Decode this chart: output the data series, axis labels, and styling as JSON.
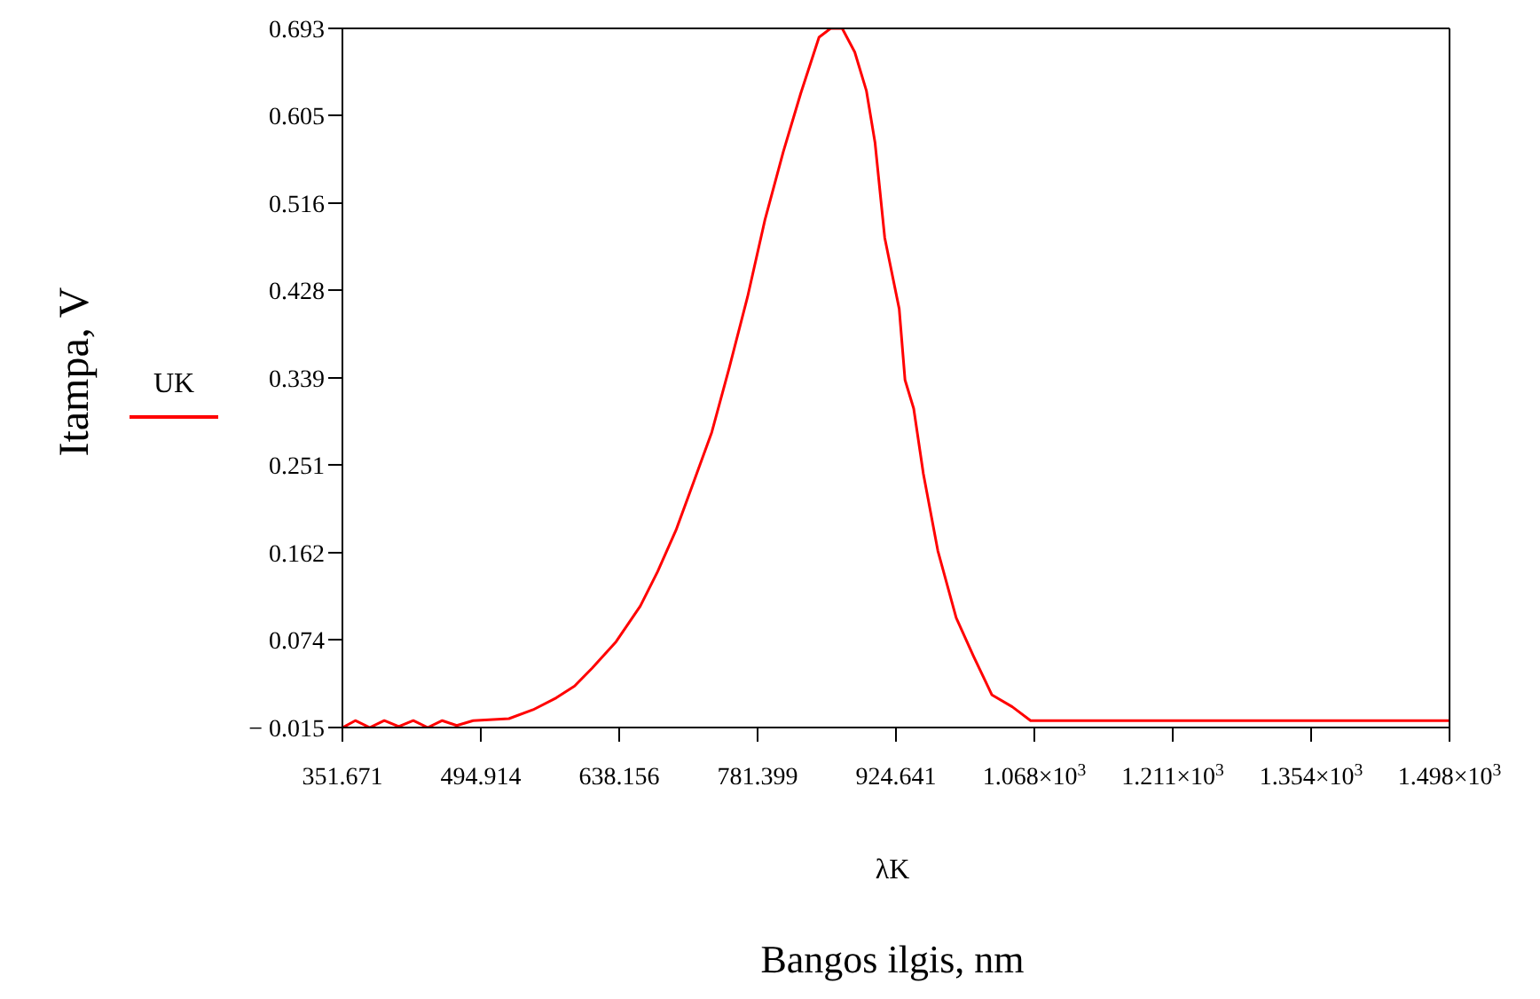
{
  "chart_data": {
    "type": "line",
    "xlabel": "Bangos ilgis, nm",
    "ylabel": "Itampa, V",
    "annotations": [
      "λK"
    ],
    "legend": "left",
    "marker": "none",
    "line_style": "solid",
    "xlim": [
      351.671,
      1497.611
    ],
    "xticks": [
      351.671,
      494.914,
      638.156,
      781.399,
      924.641,
      {
        "value": 1067.883,
        "label": "1.068×10$^{3}$"
      },
      {
        "value": 1211.126,
        "label": "1.211×10$^{3}$"
      },
      {
        "value": 1354.368,
        "label": "1.354×10$^{3}$"
      },
      {
        "value": 1497.611,
        "label": "1.498×10$^{3}$"
      }
    ],
    "ylim": [
      -0.015,
      0.693
    ],
    "yticks": [
      {
        "value": -0.015,
        "label": "− 0.015"
      },
      0.074,
      0.162,
      0.251,
      0.339,
      0.428,
      0.516,
      0.605,
      0.693
    ],
    "series": [
      {
        "name": "UK",
        "color": "#ff0000",
        "x": [
          352,
          365,
          380,
          395,
          410,
          425,
          440,
          455,
          470,
          487,
          524,
          549,
          573,
          592,
          610,
          635,
          660,
          678,
          697,
          715,
          734,
          752,
          771,
          789,
          808,
          826,
          845,
          857,
          869,
          882,
          894,
          903,
          913,
          928,
          934,
          943,
          953,
          968,
          987,
          1005,
          1024,
          1045,
          1064,
          1160,
          1497.6
        ],
        "values": [
          -0.015,
          -0.008,
          -0.015,
          -0.008,
          -0.014,
          -0.008,
          -0.015,
          -0.008,
          -0.013,
          -0.008,
          -0.006,
          0.003,
          0.015,
          0.027,
          0.045,
          0.072,
          0.108,
          0.143,
          0.185,
          0.233,
          0.284,
          0.349,
          0.421,
          0.499,
          0.568,
          0.627,
          0.684,
          0.693,
          0.693,
          0.669,
          0.63,
          0.577,
          0.481,
          0.409,
          0.337,
          0.308,
          0.242,
          0.164,
          0.096,
          0.057,
          0.018,
          0.006,
          -0.008,
          -0.008,
          -0.008
        ]
      }
    ]
  }
}
